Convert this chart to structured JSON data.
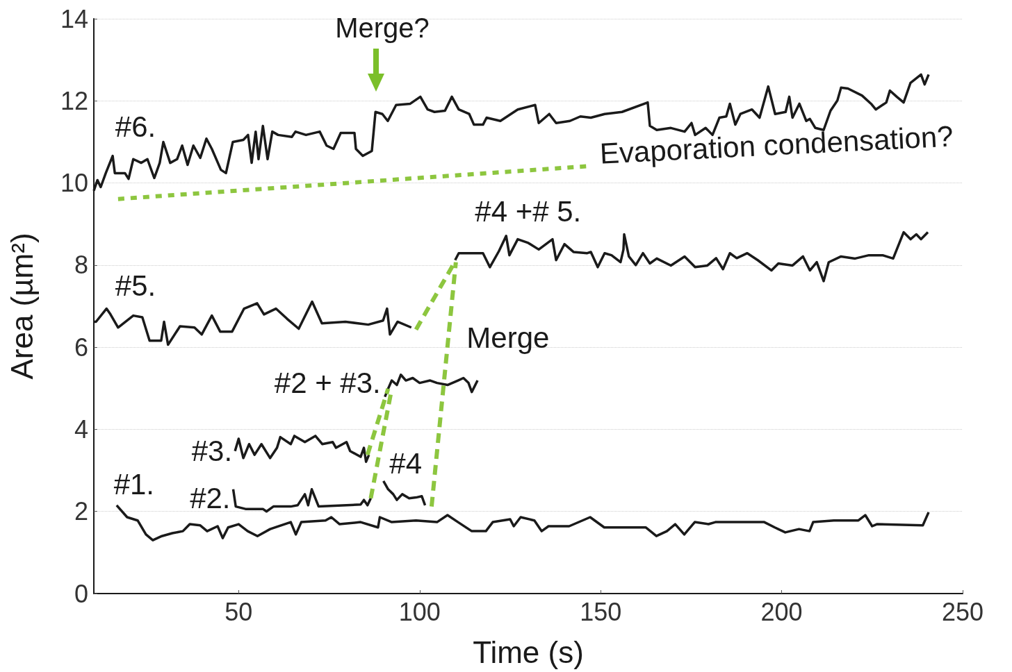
{
  "chart_data": {
    "type": "line",
    "xlabel": "Time (s)",
    "ylabel": "Area (µm²)",
    "xlim": [
      10,
      250
    ],
    "xticks": [
      50,
      100,
      150,
      200,
      250
    ],
    "ylim": [
      0,
      14
    ],
    "yticks": [
      0,
      2,
      4,
      6,
      8,
      10,
      12,
      14
    ],
    "grid": "y",
    "marker": "none",
    "line_style": "solid",
    "series": [
      {
        "name": "#1.",
        "color": "#1a1a1a",
        "x": [
          16.3,
          19.2,
          22.1,
          24.4,
          26.3,
          28.8,
          31.7,
          34.6,
          36.5,
          39.4,
          41.3,
          44.2,
          45.6,
          47.1,
          50,
          52.5,
          55.2,
          58.7,
          64.4,
          65.8,
          67.3,
          74,
          75.6,
          77.9,
          83.7,
          88.5,
          89,
          92.3,
          99,
          104.8,
          107.7,
          110.6,
          114.4,
          118.3,
          120.2,
          125,
          126,
          127.9,
          131.7,
          133.7,
          135.6,
          141.3,
          147.1,
          151,
          162.5,
          165.4,
          168.3,
          170.6,
          173.1,
          176,
          179.8,
          181.7,
          195.2,
          198.1,
          201,
          204.8,
          207.7,
          208.7,
          214.4,
          221.2,
          223.1,
          225,
          226.3,
          239,
          240.6
        ],
        "values": [
          2.15,
          1.86,
          1.78,
          1.44,
          1.3,
          1.4,
          1.47,
          1.52,
          1.69,
          1.66,
          1.52,
          1.64,
          1.35,
          1.61,
          1.69,
          1.52,
          1.4,
          1.57,
          1.74,
          1.44,
          1.74,
          1.78,
          1.86,
          1.69,
          1.74,
          1.61,
          1.86,
          1.74,
          1.78,
          1.74,
          1.91,
          1.74,
          1.52,
          1.52,
          1.74,
          1.81,
          1.64,
          1.86,
          1.78,
          1.52,
          1.64,
          1.64,
          1.86,
          1.61,
          1.61,
          1.4,
          1.52,
          1.69,
          1.44,
          1.74,
          1.69,
          1.74,
          1.74,
          1.61,
          1.49,
          1.57,
          1.52,
          1.74,
          1.78,
          1.78,
          1.91,
          1.64,
          1.69,
          1.66,
          1.98
        ]
      },
      {
        "name": "#2.",
        "color": "#1a1a1a",
        "x": [
          48.5,
          49.2,
          51.9,
          56.7,
          57.7,
          59.6,
          64.4,
          66.3,
          68.3,
          69.2,
          70.2,
          71.2,
          72.1,
          79.8,
          83.7,
          84.6,
          85.6,
          86.5
        ],
        "values": [
          2.54,
          2.12,
          2.06,
          2.06,
          2.0,
          2.12,
          2.12,
          2.15,
          2.42,
          2.15,
          2.54,
          2.32,
          2.12,
          2.15,
          2.17,
          2.28,
          2.15,
          2.32
        ]
      },
      {
        "name": "#3.",
        "color": "#1a1a1a",
        "x": [
          49,
          50,
          51.3,
          52.9,
          54.4,
          56.3,
          58.7,
          60.6,
          61.5,
          64.4,
          65.4,
          68.3,
          71.2,
          73.1,
          76,
          76.9,
          79.8,
          80.8,
          83.7,
          84.6,
          85.2,
          86
        ],
        "values": [
          3.47,
          3.77,
          3.3,
          3.64,
          3.38,
          3.64,
          3.3,
          3.55,
          3.81,
          3.64,
          3.84,
          3.69,
          3.84,
          3.64,
          3.69,
          3.55,
          3.69,
          3.47,
          3.33,
          3.55,
          3.21,
          3.38
        ]
      },
      {
        "name": "#2 + #3.",
        "color": "#1a1a1a",
        "x": [
          90.4,
          91.3,
          92.3,
          93.7,
          94.8,
          96.2,
          98.1,
          100,
          102.9,
          104.8,
          107.7,
          110.6,
          112.1,
          113.5,
          114.4,
          116
        ],
        "values": [
          4.79,
          4.99,
          5.19,
          5.08,
          5.33,
          5.19,
          5.25,
          5.13,
          5.19,
          5.13,
          5.08,
          5.19,
          5.25,
          5.13,
          4.91,
          5.19
        ]
      },
      {
        "name": "#4",
        "color": "#1a1a1a",
        "x": [
          90,
          91.3,
          92.7,
          93.7,
          95.2,
          97.1,
          99,
          100.6,
          101.5
        ],
        "values": [
          2.74,
          2.54,
          2.42,
          2.28,
          2.42,
          2.32,
          2.34,
          2.37,
          2.15
        ]
      },
      {
        "name": "#5.",
        "color": "#1a1a1a",
        "x": [
          10,
          10.6,
          13.5,
          14.6,
          16.7,
          20.9,
          23.4,
          25.4,
          28.6,
          29.4,
          30.5,
          33.8,
          37.8,
          39.8,
          42.6,
          44.9,
          48.2,
          51.5,
          55.1,
          57,
          60.3,
          63.4,
          66.6,
          70.3,
          73,
          79.5,
          85.8,
          89.9,
          91,
          91.8,
          93.9,
          97.7
        ],
        "values": [
          6.62,
          6.62,
          6.94,
          6.8,
          6.48,
          6.77,
          6.73,
          6.16,
          6.16,
          6.62,
          6.06,
          6.51,
          6.48,
          6.31,
          6.77,
          6.38,
          6.38,
          6.94,
          7.07,
          6.8,
          6.94,
          6.69,
          6.45,
          7.11,
          6.58,
          6.62,
          6.55,
          6.65,
          6.94,
          6.31,
          6.62,
          6.48
        ]
      },
      {
        "name": "#4 +# 5.",
        "color": "#1a1a1a",
        "x": [
          109.8,
          110.8,
          117.5,
          119.4,
          121.9,
          123.9,
          124.8,
          127.1,
          130,
          132.9,
          136.7,
          137.7,
          140,
          142.5,
          146.3,
          147.3,
          149.2,
          151.1,
          153,
          155.5,
          156.3,
          156.5,
          157.8,
          159.7,
          161.7,
          163.6,
          165.5,
          169.4,
          173.2,
          176.1,
          179.5,
          181.9,
          183.8,
          185.7,
          187.6,
          190.5,
          193.4,
          197.2,
          199.1,
          203,
          205.9,
          207.8,
          209.7,
          211.6,
          213,
          216.4,
          220.3,
          224.1,
          227.9,
          230.8,
          233.7,
          235.6,
          237.2,
          238.5,
          240.4
        ],
        "values": [
          8.12,
          8.29,
          8.29,
          7.95,
          8.34,
          8.71,
          8.24,
          8.63,
          8.54,
          8.38,
          8.63,
          8.12,
          8.51,
          8.32,
          8.29,
          8.32,
          7.95,
          8.29,
          8.24,
          8.07,
          8.38,
          8.75,
          8.21,
          8.0,
          8.29,
          8.04,
          8.16,
          7.99,
          8.21,
          7.95,
          7.99,
          8.17,
          7.9,
          8.29,
          8.17,
          8.29,
          8.12,
          7.87,
          8.04,
          7.99,
          8.21,
          7.87,
          8.07,
          7.61,
          8.07,
          8.21,
          8.16,
          8.24,
          8.24,
          8.16,
          8.8,
          8.63,
          8.75,
          8.63,
          8.8
        ]
      },
      {
        "name": "#6.",
        "color": "#1a1a1a",
        "x": [
          10,
          11,
          11.9,
          13.3,
          15.2,
          15.8,
          18.6,
          19.6,
          20.9,
          23.1,
          24.8,
          26.7,
          28.2,
          29.2,
          31.1,
          33,
          34.4,
          35.9,
          37.5,
          39.4,
          41.1,
          42.6,
          45.1,
          46.5,
          48.4,
          51.3,
          52.6,
          53.6,
          54.7,
          55.5,
          56.7,
          58,
          59.3,
          60.9,
          64.7,
          65.7,
          68.6,
          72.4,
          74.3,
          76.2,
          78.2,
          82,
          82.4,
          84.3,
          86.8,
          87.8,
          89.7,
          91.2,
          93.5,
          97.4,
          100.2,
          102.2,
          104.1,
          107,
          108.9,
          110.8,
          113.7,
          115,
          117.5,
          118.5,
          122.3,
          125.2,
          127.1,
          131.9,
          132.9,
          135.8,
          137.7,
          141.5,
          144.4,
          147.3,
          151.1,
          155.9,
          163,
          163.6,
          165.5,
          169.4,
          173.2,
          175.1,
          176.1,
          179,
          180.9,
          182.8,
          184.7,
          185.7,
          187.2,
          188.6,
          191.8,
          193.9,
          196.3,
          198.2,
          201.1,
          202.1,
          203,
          204.9,
          206.8,
          207.8,
          209.3,
          211.6,
          213.5,
          215.4,
          216.4,
          218.3,
          222.2,
          224.7,
          226,
          228.9,
          229.9,
          231.8,
          233.7,
          235.6,
          238.5,
          239.5,
          240.6
        ],
        "values": [
          9.81,
          10.07,
          9.9,
          10.24,
          10.66,
          10.24,
          10.24,
          10.1,
          10.58,
          10.49,
          10.58,
          10.12,
          10.49,
          11.0,
          10.49,
          10.58,
          10.91,
          10.44,
          10.91,
          10.61,
          11.08,
          10.83,
          10.32,
          10.24,
          11.0,
          11.05,
          11.17,
          10.49,
          11.25,
          10.58,
          11.39,
          10.58,
          11.25,
          11.17,
          11.12,
          11.25,
          11.17,
          11.25,
          10.91,
          10.83,
          11.22,
          11.22,
          10.83,
          10.66,
          10.78,
          11.73,
          11.68,
          11.51,
          11.9,
          11.93,
          12.1,
          11.79,
          11.73,
          11.76,
          12.1,
          11.79,
          11.68,
          11.42,
          11.42,
          11.59,
          11.51,
          11.68,
          11.79,
          11.9,
          11.46,
          11.68,
          11.46,
          11.51,
          11.62,
          11.59,
          11.68,
          11.73,
          11.96,
          11.39,
          11.29,
          11.34,
          11.25,
          11.46,
          11.17,
          11.34,
          11.17,
          11.59,
          11.62,
          11.93,
          11.42,
          11.68,
          11.79,
          11.59,
          12.35,
          11.68,
          11.73,
          12.1,
          11.59,
          11.93,
          11.51,
          11.56,
          11.34,
          11.29,
          11.76,
          12.01,
          12.32,
          12.3,
          12.13,
          11.93,
          11.79,
          11.96,
          12.25,
          12.1,
          11.96,
          12.44,
          12.64,
          12.4,
          12.64
        ]
      },
      {
        "color": "#8dc63f",
        "line_style": "dashed",
        "x": [
          86.5,
          92.3
        ],
        "values": [
          2.32,
          4.99
        ]
      },
      {
        "color": "#8dc63f",
        "line_style": "dashed",
        "x": [
          85.6,
          91.3
        ],
        "values": [
          3.38,
          4.99
        ]
      },
      {
        "name": "Merge",
        "color": "#8dc63f",
        "line_style": "dashed",
        "x": [
          103.3,
          110
        ],
        "values": [
          2.12,
          8.07
        ]
      },
      {
        "color": "#8dc63f",
        "line_style": "dashed",
        "x": [
          99,
          110
        ],
        "values": [
          6.43,
          8.12
        ]
      },
      {
        "name": "Evaporation condensation?",
        "color": "#8dc63f",
        "line_style": "dotted",
        "x": [
          16.7,
          146.5
        ],
        "values": [
          9.61,
          10.41
        ]
      }
    ],
    "annotations": [
      "Merge?"
    ]
  }
}
